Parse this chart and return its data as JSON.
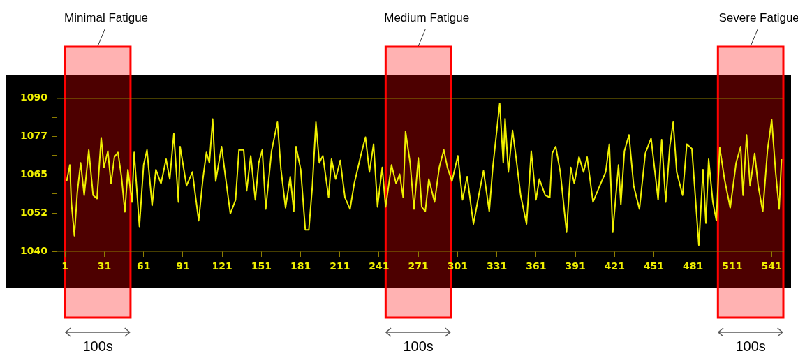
{
  "chart_data": {
    "type": "line",
    "x": [
      2.2,
      4.6,
      5.8,
      8.1,
      10.3,
      12.9,
      15.6,
      19.1,
      22.4,
      25.4,
      28.6,
      30.7,
      33.7,
      36.1,
      38.7,
      41.4,
      44.1,
      46.7,
      49.0,
      52.1,
      53.8,
      57.8,
      61.0,
      63.6,
      67.5,
      70.4,
      74.3,
      78.2,
      81.0,
      84.1,
      87.6,
      88.9,
      93.8,
      98.3,
      103.1,
      106.3,
      109.0,
      111.3,
      113.8,
      116.1,
      120.6,
      123.8,
      127.3,
      131.3,
      133.9,
      137.5,
      139.8,
      142.9,
      146.4,
      149.0,
      151.7,
      154.4,
      158.8,
      163.3,
      166.0,
      169.5,
      173.1,
      175.8,
      177.5,
      181.1,
      184.6,
      187.3,
      190.0,
      192.7,
      195.3,
      198.0,
      202.4,
      204.6,
      207.8,
      211.3,
      214.9,
      218.8,
      222.0,
      227.4,
      230.6,
      233.6,
      236.8,
      239.8,
      243.4,
      246.0,
      250.5,
      254.0,
      256.7,
      259.4,
      261.2,
      264.7,
      267.7,
      271.0,
      273.6,
      276.3,
      279.0,
      283.4,
      287.0,
      290.5,
      293.2,
      296.7,
      301.2,
      304.8,
      308.3,
      313.1,
      317.2,
      320.8,
      325.2,
      327.9,
      333.2,
      335.9,
      337.3,
      339.8,
      343.0,
      345.7,
      349.2,
      353.7,
      357.3,
      360.9,
      363.5,
      368.0,
      371.5,
      373.3,
      376.0,
      379.5,
      384.3,
      387.5,
      390.2,
      393.8,
      397.3,
      400.0,
      404.5,
      408.9,
      414.2,
      417.0,
      419.6,
      424.0,
      425.8,
      428.5,
      432.0,
      435.6,
      440.0,
      444.5,
      448.9,
      454.3,
      457.0,
      460.1,
      463.2,
      465.8,
      468.5,
      473.0,
      476.2,
      480.1,
      485.4,
      488.6,
      490.8,
      492.9,
      496.1,
      498.8,
      501.4,
      505.0,
      509.4,
      513.9,
      517.4,
      519.2,
      521.9,
      524.6,
      528.1,
      530.8,
      534.3,
      537.9,
      541.1,
      544.1,
      546.8,
      548.6
    ],
    "series": [
      {
        "color": "#f0f000",
        "values": [
          1062.9,
          1068.2,
          1056,
          1045.1,
          1059.1,
          1068.9,
          1058.3,
          1073.1,
          1058.3,
          1057.2,
          1077.1,
          1067.4,
          1072.7,
          1062.1,
          1070.8,
          1072.3,
          1064.4,
          1052.9,
          1066.7,
          1056.1,
          1072.3,
          1048.1,
          1068.2,
          1073.1,
          1055,
          1066.7,
          1062.1,
          1070.1,
          1063.6,
          1078.4,
          1056.1,
          1074.2,
          1061.4,
          1065.9,
          1050,
          1063.6,
          1072.3,
          1068.9,
          1083.2,
          1062.9,
          1074.2,
          1063.6,
          1052.3,
          1056.8,
          1073.1,
          1073.1,
          1059.8,
          1071.2,
          1056.8,
          1068.9,
          1073.1,
          1053.8,
          1072.7,
          1082.2,
          1066.7,
          1054.2,
          1064.4,
          1053,
          1074.2,
          1066.7,
          1047,
          1047,
          1061.4,
          1082.2,
          1068.9,
          1071.2,
          1057.6,
          1070.1,
          1063.6,
          1069.7,
          1057.6,
          1053.8,
          1062.1,
          1072,
          1077.3,
          1065.9,
          1075,
          1054.5,
          1067.4,
          1054.5,
          1068.2,
          1062.1,
          1065.2,
          1057.6,
          1079.2,
          1068.9,
          1053.8,
          1070.5,
          1054.5,
          1053,
          1063.6,
          1056.1,
          1067.4,
          1073.1,
          1067.4,
          1062.9,
          1071.2,
          1056.8,
          1064.4,
          1048.9,
          1058.3,
          1066.3,
          1053,
          1067.4,
          1088.3,
          1068.9,
          1083.3,
          1065.9,
          1079.5,
          1070.5,
          1058.3,
          1048.9,
          1072.7,
          1056.8,
          1063.6,
          1058.3,
          1057.6,
          1072,
          1074.2,
          1065.9,
          1046.2,
          1067.4,
          1062.1,
          1070.8,
          1065.9,
          1070.8,
          1056.1,
          1060.6,
          1065.9,
          1075,
          1046.2,
          1068.2,
          1055.3,
          1072.7,
          1078,
          1061.4,
          1053.8,
          1072,
          1076.9,
          1056.8,
          1076.5,
          1056.1,
          1074.2,
          1082.2,
          1065.9,
          1058.3,
          1075,
          1073.5,
          1042,
          1066.7,
          1049.2,
          1070.1,
          1056.1,
          1050,
          1073.9,
          1063.6,
          1054.2,
          1068.9,
          1074.2,
          1058.3,
          1078,
          1061.4,
          1072,
          1061.4,
          1053,
          1073.1,
          1083,
          1065.9,
          1053.8,
          1070.1
        ]
      }
    ],
    "xlim": [
      -5,
      550
    ],
    "xticks": [
      1,
      31,
      61,
      91,
      121,
      151,
      181,
      211,
      241,
      271,
      301,
      331,
      361,
      391,
      421,
      451,
      481,
      511,
      541
    ],
    "ylim": [
      1040,
      1097
    ],
    "yticks": [
      1040,
      {
        "value": 1046.25,
        "label": null
      },
      {
        "value": 1052.5,
        "label": "1052"
      },
      {
        "value": 1058.75,
        "label": null
      },
      1065,
      {
        "value": 1071.25,
        "label": null
      },
      {
        "value": 1077.5,
        "label": "1077"
      },
      {
        "value": 1083.75,
        "label": null
      },
      1090
    ],
    "ref_lines": [
      {
        "axis": "y",
        "value": 1090,
        "color": "#8c7d00"
      }
    ],
    "bands": [
      {
        "axis": "x",
        "from": 1,
        "to": 51,
        "label": "Minimal Fatigue",
        "color": "#ff0000"
      },
      {
        "axis": "x",
        "from": 246,
        "to": 296,
        "label": "Medium Fatigue",
        "color": "#ff0000"
      },
      {
        "axis": "x",
        "from": 500,
        "to": 550,
        "label": "Severe Fatigue",
        "color": "#ff0000"
      }
    ],
    "annotations": [
      "100s",
      "100s",
      "100s"
    ],
    "grid": false,
    "legend": false,
    "marker": "none",
    "line_style": "solid"
  }
}
